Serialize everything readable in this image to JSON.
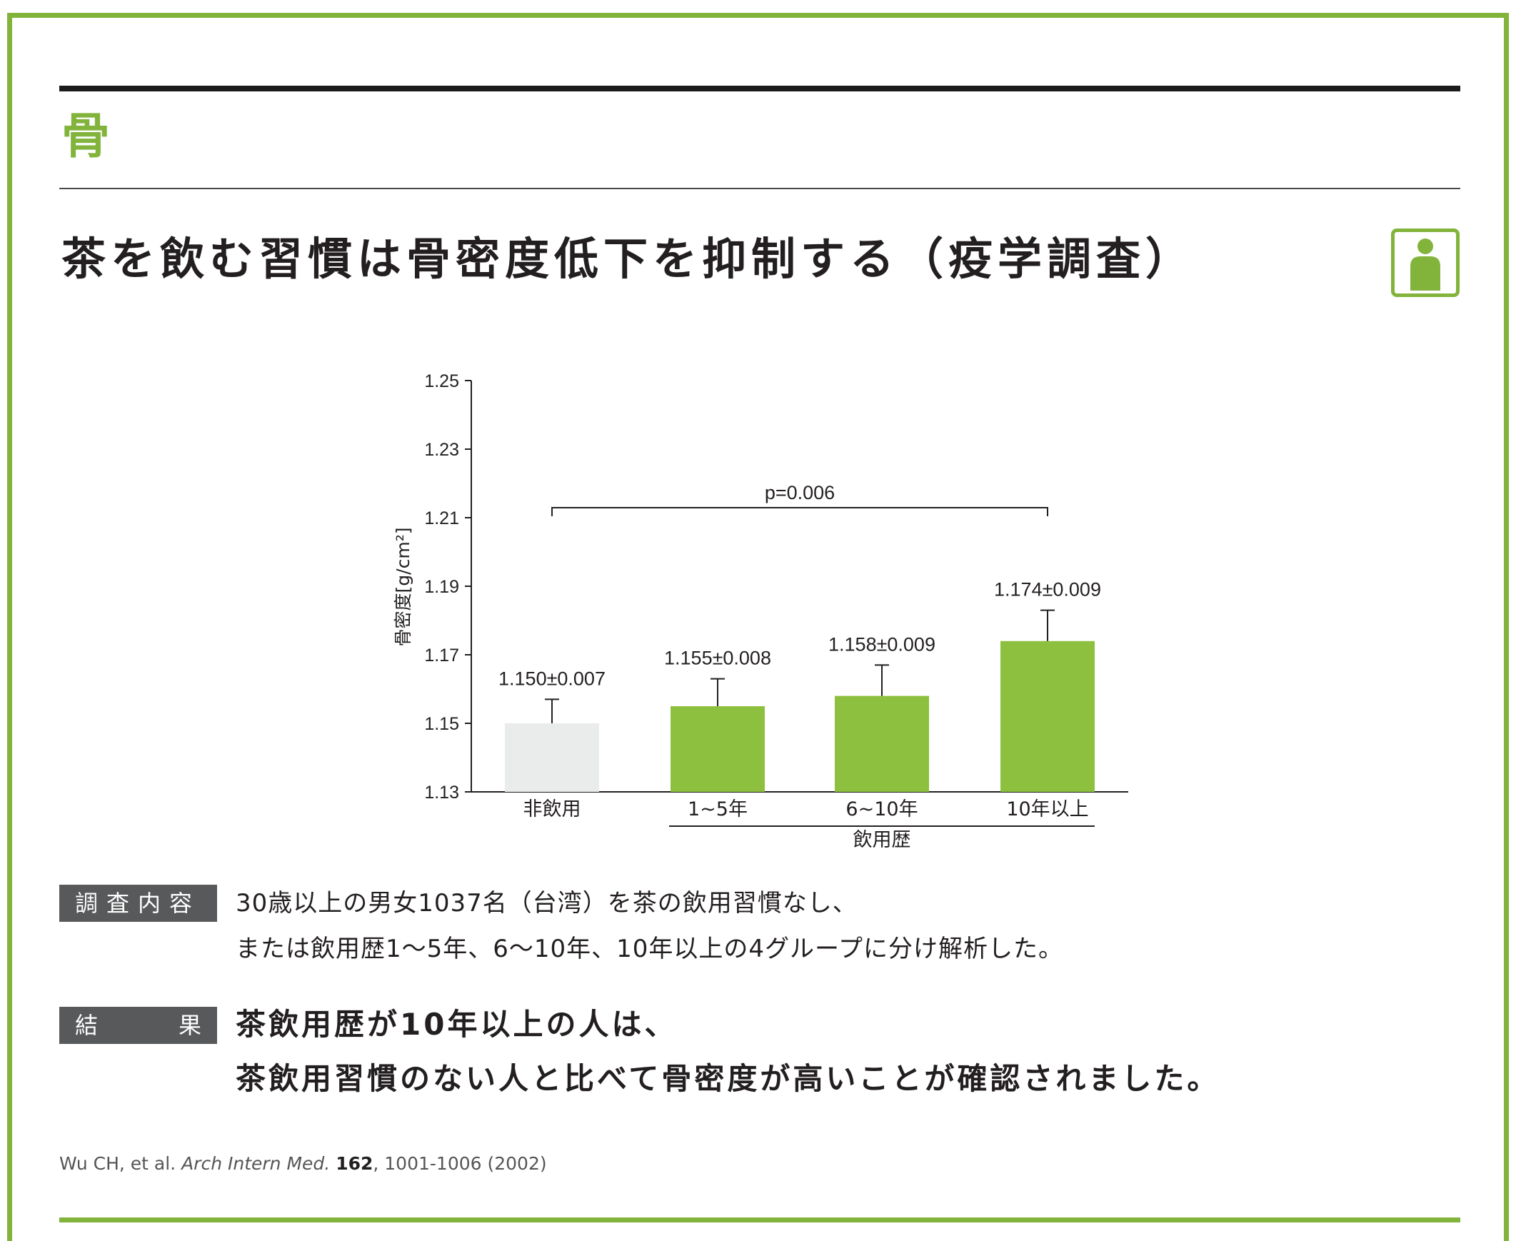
{
  "section": {
    "label": "骨"
  },
  "headline": "茶を飲む習慣は骨密度低下を抑制する（疫学調査）",
  "icons": {
    "badge": "person-icon"
  },
  "colors": {
    "accent": "#82b43c",
    "bar_control": "#eaebeb",
    "bar_tea": "#8ec03f",
    "tag_bg": "#58595b"
  },
  "chart_data": {
    "type": "bar",
    "ylabel": "骨密度[g/cm²]",
    "ylim": [
      1.13,
      1.25
    ],
    "yticks": [
      "1.25",
      "1.23",
      "1.21",
      "1.19",
      "1.17",
      "1.15",
      "1.13"
    ],
    "categories": [
      "非飲用",
      "1~5年",
      "6~10年",
      "10年以上"
    ],
    "values": [
      1.15,
      1.155,
      1.158,
      1.174
    ],
    "errors": [
      0.007,
      0.008,
      0.009,
      0.009
    ],
    "value_labels": [
      "1.150±0.007",
      "1.155±0.008",
      "1.158±0.009",
      "1.174±0.009"
    ],
    "group_label": "飲用歴",
    "significance": {
      "from": "非飲用",
      "to": "10年以上",
      "label": "p=0.006"
    }
  },
  "survey": {
    "tag_chars": [
      "調",
      "査",
      "内",
      "容"
    ],
    "lines": [
      "30歳以上の男女1037名（台湾）を茶の飲用習慣なし、",
      "または飲用歴1～5年、6～10年、10年以上の4グループに分け解析した。"
    ]
  },
  "result": {
    "tag_chars": [
      "結",
      "果"
    ],
    "lines": [
      "茶飲用歴が10年以上の人は、",
      "茶飲用習慣のない人と比べて骨密度が高いことが確認されました。"
    ]
  },
  "citation": {
    "authors": "Wu CH, et al.",
    "journal": "Arch Intern Med.",
    "volume": "162",
    "pages": ", 1001-1006 (2002)"
  }
}
